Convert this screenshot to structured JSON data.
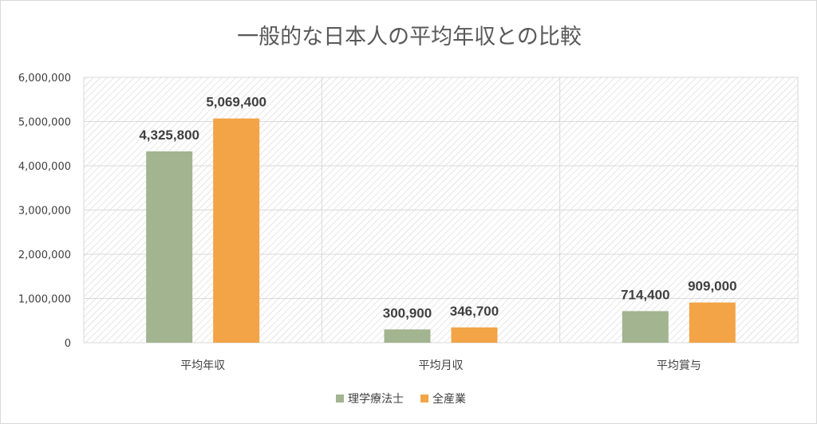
{
  "chart_data": {
    "type": "bar",
    "title": "一般的な日本人の平均年収との比較",
    "categories": [
      "平均年収",
      "平均月収",
      "平均賞与"
    ],
    "series": [
      {
        "name": "理学療法士",
        "values": [
          4325800,
          300900,
          714400
        ],
        "color": "#a2b490"
      },
      {
        "name": "全産業",
        "values": [
          5069400,
          346700,
          909000
        ],
        "color": "#f2a446"
      }
    ],
    "value_labels": [
      [
        "4,325,800",
        "300,900",
        "714,400"
      ],
      [
        "5,069,400",
        "346,700",
        "909,000"
      ]
    ],
    "ylim": [
      0,
      6000000
    ],
    "yticks": [
      0,
      1000000,
      2000000,
      3000000,
      4000000,
      5000000,
      6000000
    ],
    "ytick_labels": [
      "0",
      "1,000,000",
      "2,000,000",
      "3,000,000",
      "4,000,000",
      "5,000,000",
      "6,000,000"
    ],
    "grid": true,
    "legend_position": "bottom",
    "plot_background": "diagonal hatch, light gray",
    "xlabel": "",
    "ylabel": ""
  }
}
